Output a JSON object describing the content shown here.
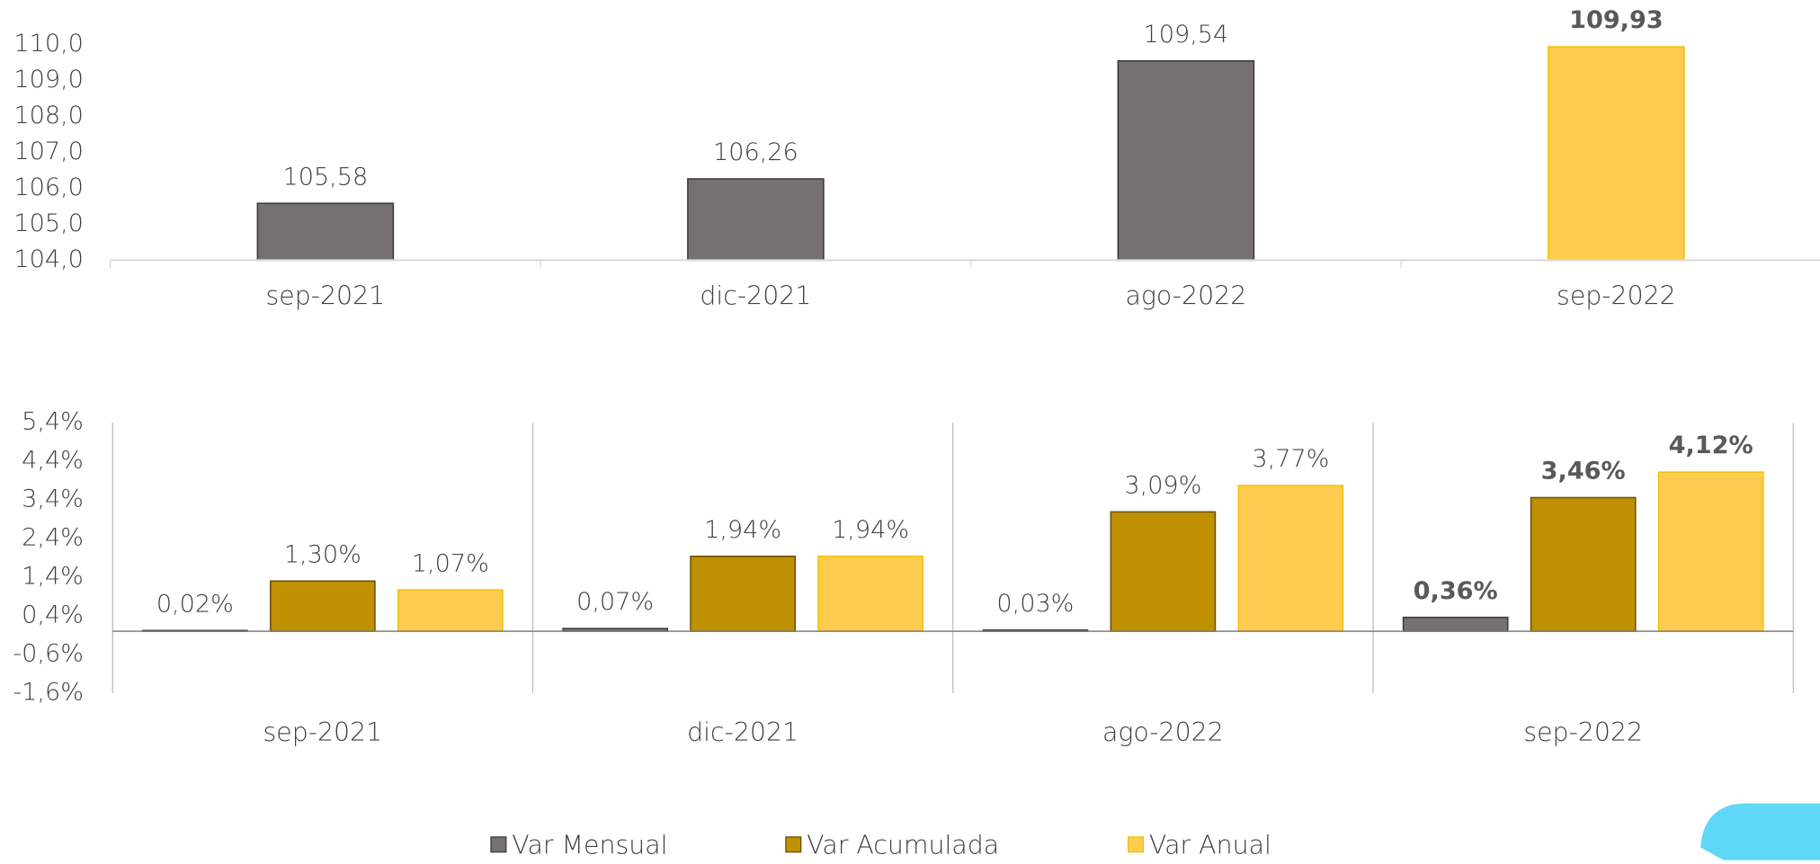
{
  "chart_data": [
    {
      "type": "bar",
      "categories": [
        "sep-2021",
        "dic-2021",
        "ago-2022",
        "sep-2022"
      ],
      "values": [
        105.58,
        106.26,
        109.54,
        109.93
      ],
      "value_labels": [
        "105,58",
        "106,26",
        "109,54",
        "109,93"
      ],
      "colors": [
        "#767171",
        "#767171",
        "#767171",
        "#ffcc4f"
      ],
      "ylim": [
        104,
        110
      ],
      "yticks": [
        {
          "value": 104,
          "label": "104,0"
        },
        {
          "value": 105,
          "label": "105,0"
        },
        {
          "value": 106,
          "label": "106,0"
        },
        {
          "value": 107,
          "label": "107,0"
        },
        {
          "value": 108,
          "label": "108,0"
        },
        {
          "value": 109,
          "label": "109,0"
        },
        {
          "value": 110,
          "label": "110,0"
        }
      ],
      "grid": false
    },
    {
      "type": "grouped_bar",
      "categories": [
        "sep-2021",
        "dic-2021",
        "ago-2022",
        "sep-2022"
      ],
      "series": [
        {
          "name": "Var Mensual",
          "color": "#767171",
          "values": [
            0.02,
            0.07,
            0.03,
            0.36
          ],
          "value_labels": [
            "0,02%",
            "0,07%",
            "0,03%",
            "0,36%"
          ]
        },
        {
          "name": "Var Acumulada",
          "color": "#bf9000",
          "values": [
            1.3,
            1.94,
            3.09,
            3.46
          ],
          "value_labels": [
            "1,30%",
            "1,94%",
            "3,09%",
            "3,46%"
          ]
        },
        {
          "name": "Var Anual",
          "color": "#ffcc4f",
          "values": [
            1.07,
            1.94,
            3.77,
            4.12
          ],
          "value_labels": [
            "1,07%",
            "1,94%",
            "3,77%",
            "4,12%"
          ]
        }
      ],
      "ylim": [
        -1.6,
        5.4
      ],
      "yticks": [
        {
          "value": -1.6,
          "label": "-1,6%"
        },
        {
          "value": -0.6,
          "label": "-0,6%"
        },
        {
          "value": 0.4,
          "label": "0,4%"
        },
        {
          "value": 1.4,
          "label": "1,4%"
        },
        {
          "value": 2.4,
          "label": "2,4%"
        },
        {
          "value": 3.4,
          "label": "3,4%"
        },
        {
          "value": 4.4,
          "label": "4,4%"
        },
        {
          "value": 5.4,
          "label": "5,4%"
        }
      ],
      "grid": false,
      "legend": "bottom"
    }
  ]
}
